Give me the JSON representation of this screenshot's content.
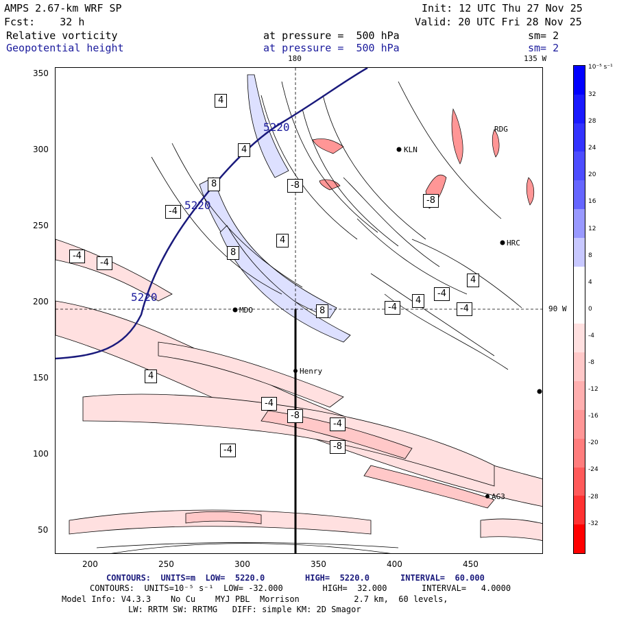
{
  "header": {
    "model": "AMPS 2.67-km WRF SP",
    "init": "Init: 12 UTC Thu 27 Nov 25",
    "fcst": "Fcst:    32 h",
    "valid": "Valid: 20 UTC Fri 28 Nov 25",
    "field1": "Relative vorticity",
    "field1_level": "at pressure =  500 hPa",
    "field1_sm": "sm= 2",
    "field2": "Geopotential height",
    "field2_level": "at pressure =  500 hPa",
    "field2_sm": "sm= 2"
  },
  "map": {
    "meridian_top_label": "180",
    "meridian_right_top_label": "135 W",
    "parallel_right_label": "90 W",
    "x_ticks": [
      "200",
      "250",
      "300",
      "350",
      "400",
      "450"
    ],
    "y_ticks": [
      "350",
      "300",
      "250",
      "200",
      "150",
      "100",
      "50"
    ],
    "height_contour_labels": [
      "5220",
      "5220",
      "5220"
    ],
    "stations": [
      "Henry",
      "KLN",
      "RDG",
      "HRC",
      "AG3",
      "MDO"
    ],
    "vorticity_labels": [
      "-4",
      "4",
      "8",
      "-8",
      "-4",
      "4",
      "8",
      "-4",
      "4",
      "-4",
      "-8",
      "-4",
      "4",
      "8",
      "-4",
      "-8",
      "-4",
      "4",
      "-4",
      "-8",
      "-4",
      "4"
    ]
  },
  "colorbar": {
    "unit": "10⁻⁵ s⁻¹",
    "labels": [
      "32",
      "28",
      "24",
      "20",
      "16",
      "12",
      "8",
      "4",
      "0",
      "-4",
      "-8",
      "-12",
      "-16",
      "-20",
      "-24",
      "-28",
      "-32"
    ],
    "colors": [
      "#0000ff",
      "#1a1aff",
      "#3333ff",
      "#4d4dff",
      "#6666ff",
      "#9999ff",
      "#c8c8ff",
      "#ffffff",
      "#ffffff",
      "#ffe0e0",
      "#ffc8c8",
      "#ffafaf",
      "#ff9696",
      "#ff7d7d",
      "#ff5a5a",
      "#ff3232",
      "#ff0000"
    ]
  },
  "footer": {
    "line1_a": "CONTOURS:  UNITS=m  LOW=  5220.0",
    "line1_b": "HIGH=  5220.0",
    "line1_c": "INTERVAL=  60.000",
    "line2": "CONTOURS:  UNITS=10⁻⁵ s⁻¹  LOW= -32.000        HIGH=  32.000       INTERVAL=   4.0000",
    "line3": "Model Info: V4.3.3    No Cu    MYJ PBL  Morrison           2.7 km,  60 levels,",
    "line4": "LW: RRTM SW: RRTMG   DIFF: simple KM: 2D Smagor"
  }
}
